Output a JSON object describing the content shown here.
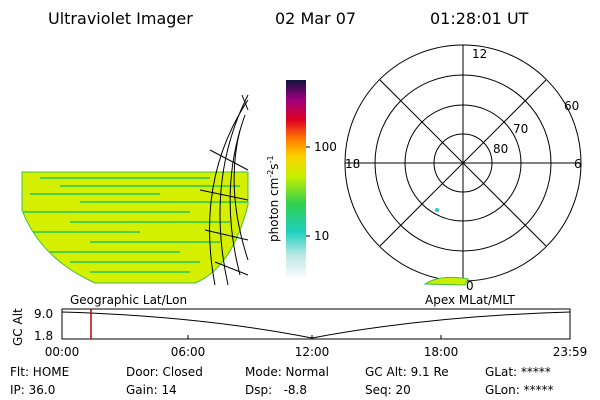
{
  "header": {
    "title": "Ultraviolet Imager",
    "date": "02 Mar 07",
    "time": "01:28:01 UT"
  },
  "colorbar": {
    "label": [
      "photon cm",
      "-2",
      "s",
      "-1"
    ],
    "tick_labels": [
      "100",
      "10"
    ]
  },
  "polar": {
    "labels": [
      "12",
      "6",
      "18",
      "0",
      "60",
      "70",
      "80"
    ]
  },
  "timeline": {
    "axis_label": "GC Alt",
    "y_labels": [
      "9.0",
      "1.8"
    ],
    "left_title": "Geographic Lat/Lon",
    "right_title": "Apex MLat/MLT",
    "x_labels": [
      "00:00",
      "06:00",
      "12:00",
      "18:00",
      "23:59"
    ]
  },
  "status": {
    "rows": [
      [
        "Flt: HOME",
        "Door: Closed",
        "Mode: Normal",
        "GC Alt: 9.1 Re",
        "GLat: *****"
      ],
      [
        "IP: 36.0",
        "Gain: 14",
        "Dsp:   -8.8",
        "Seq: 20",
        "GLon: *****"
      ]
    ]
  }
}
